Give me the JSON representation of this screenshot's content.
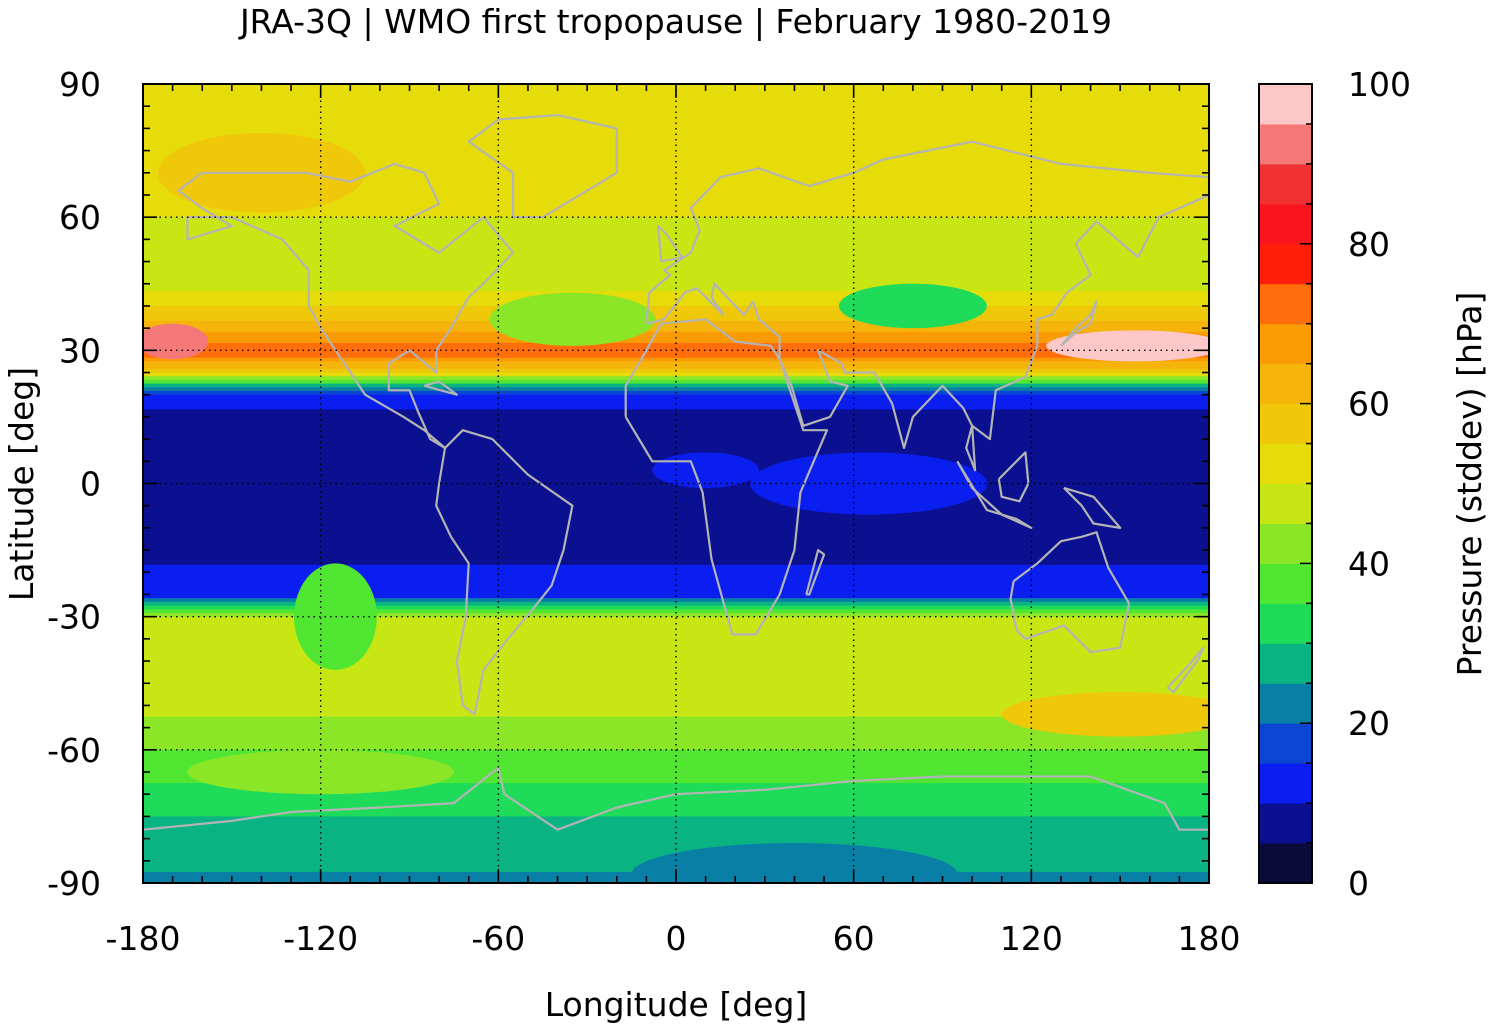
{
  "chart_data": {
    "type": "heatmap",
    "title": "JRA-3Q | WMO first tropopause | February 1980-2019",
    "xlabel": "Longitude [deg]",
    "ylabel": "Latitude [deg]",
    "xlim": [
      -180,
      180
    ],
    "ylim": [
      -90,
      90
    ],
    "x_ticks": [
      "-180",
      "-120",
      "-60",
      "0",
      "60",
      "120",
      "180"
    ],
    "y_ticks": [
      "90",
      "60",
      "30",
      "0",
      "-30",
      "-60",
      "-90"
    ],
    "x_tick_values": [
      -180,
      -120,
      -60,
      0,
      60,
      120,
      180
    ],
    "y_tick_values": [
      90,
      60,
      30,
      0,
      -30,
      -60,
      -90
    ],
    "grid": "dotted at tick marks",
    "colorbar": {
      "label": "Pressure (stddev) [hPa]",
      "range": [
        0,
        100
      ],
      "ticks": [
        "0",
        "20",
        "40",
        "60",
        "80",
        "100"
      ],
      "tick_values": [
        0,
        20,
        40,
        60,
        80,
        100
      ],
      "levels": [
        0,
        5,
        10,
        15,
        20,
        25,
        30,
        35,
        40,
        45,
        50,
        55,
        60,
        65,
        70,
        75,
        80,
        85,
        90,
        95,
        100
      ],
      "colors": [
        "#0b0b3a",
        "#0a108f",
        "#0a1ef0",
        "#0a46d2",
        "#0a7fa5",
        "#0ab482",
        "#1edc5a",
        "#50e632",
        "#8ce628",
        "#c8e614",
        "#e6dc0a",
        "#f0c80a",
        "#f5b40a",
        "#fa9b05",
        "#ff6e0a",
        "#ff1e0a",
        "#fa141e",
        "#f03232",
        "#f57878",
        "#ffc8c8"
      ]
    },
    "field_description_bands": [
      {
        "lat": 90,
        "value": 52
      },
      {
        "lat": 75,
        "value": 55
      },
      {
        "lat": 60,
        "value": 50
      },
      {
        "lat": 45,
        "value": 48
      },
      {
        "lat": 35,
        "value": 62
      },
      {
        "lat": 30,
        "value": 75
      },
      {
        "lat": 25,
        "value": 55
      },
      {
        "lat": 20,
        "value": 12
      },
      {
        "lat": 10,
        "value": 7
      },
      {
        "lat": 0,
        "value": 8
      },
      {
        "lat": -15,
        "value": 9
      },
      {
        "lat": -25,
        "value": 12
      },
      {
        "lat": -30,
        "value": 45
      },
      {
        "lat": -45,
        "value": 50
      },
      {
        "lat": -60,
        "value": 40
      },
      {
        "lat": -75,
        "value": 30
      },
      {
        "lat": -90,
        "value": 24
      }
    ]
  }
}
